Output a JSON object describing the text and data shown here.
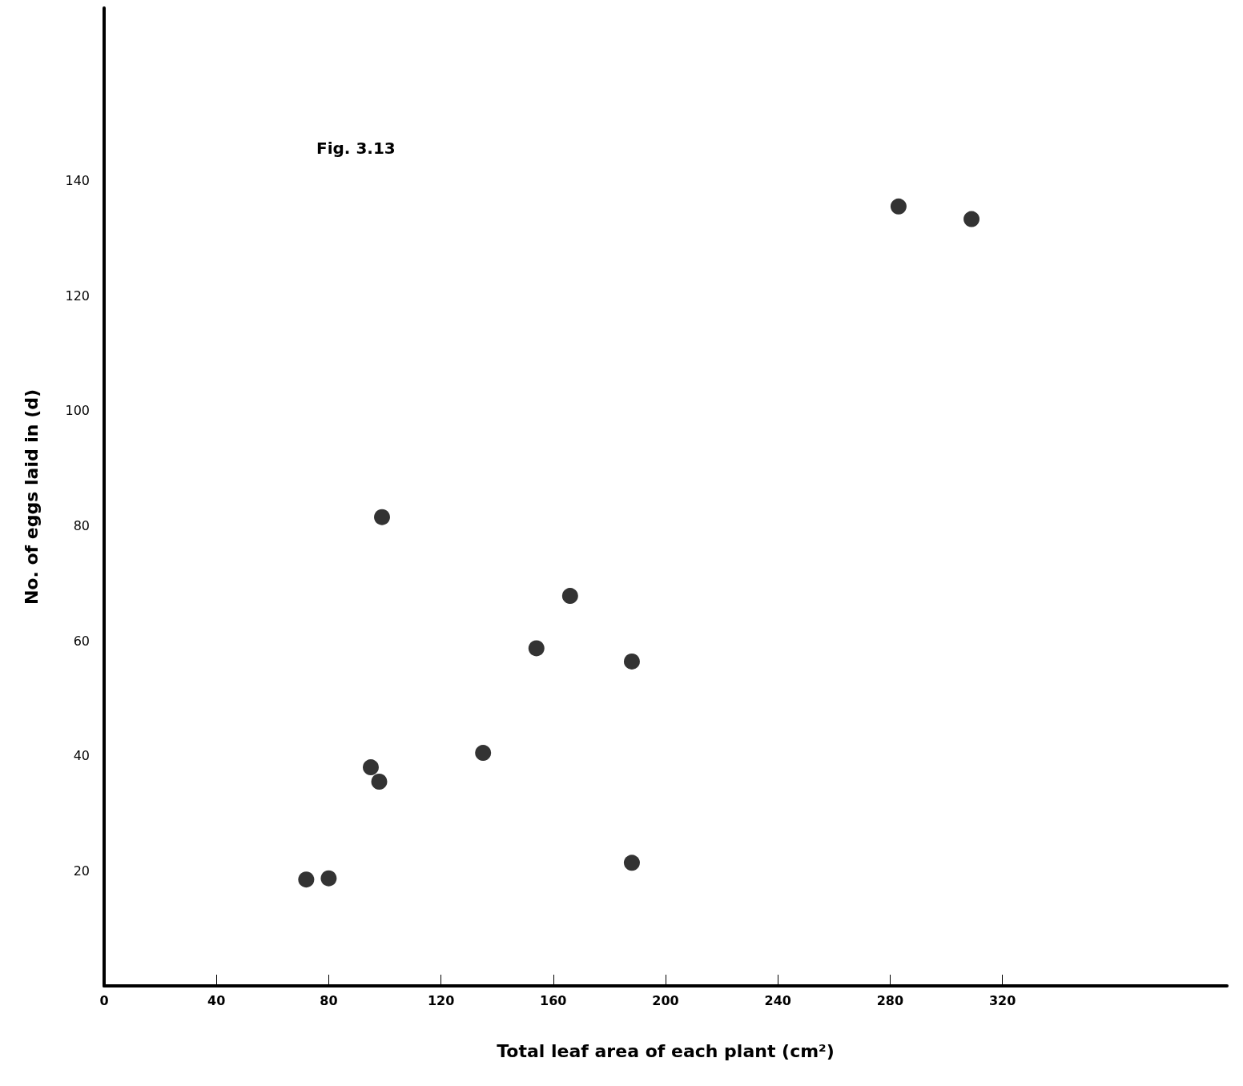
{
  "chart_data": {
    "type": "scatter",
    "title": "Fig. 3.13",
    "xlabel": "Total leaf area of each plant (cm²)",
    "ylabel": "No. of eggs laid in (d)",
    "x": [
      72,
      80,
      95,
      98,
      99,
      135,
      154,
      166,
      188,
      188,
      283,
      309
    ],
    "series": [
      {
        "color": "#000000",
        "values": [
          18.5,
          18.7,
          38,
          35.5,
          81.5,
          40.5,
          58.7,
          67.8,
          56.4,
          21.4,
          135.5,
          133.3
        ]
      }
    ],
    "xlim": [
      0,
      400
    ],
    "xticks": [
      0,
      40,
      80,
      120,
      160,
      200,
      240,
      280,
      320
    ],
    "ylim": [
      0,
      170
    ],
    "yticks": [
      20,
      40,
      60,
      80,
      100,
      120,
      140
    ],
    "grid": false,
    "marker": "circle"
  }
}
